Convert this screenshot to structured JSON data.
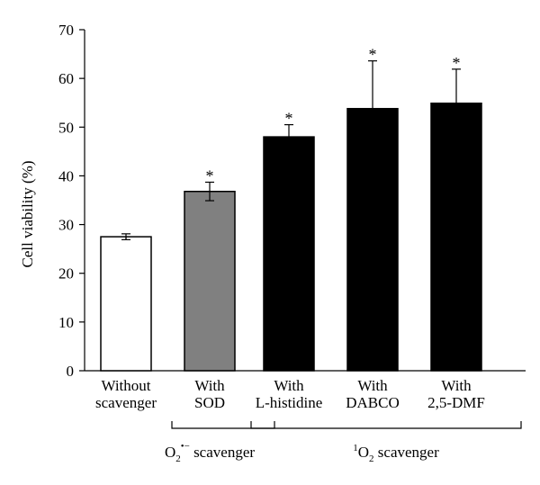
{
  "chart_data": {
    "type": "bar",
    "ylabel": "Cell viability (%)",
    "ylim": [
      0,
      70
    ],
    "yticks": [
      0,
      10,
      20,
      30,
      40,
      50,
      60,
      70
    ],
    "grid": false,
    "categories": [
      {
        "line1": "Without",
        "line2": "scavenger"
      },
      {
        "line1": "With",
        "line2": "SOD"
      },
      {
        "line1": "With",
        "line2": "L-histidine"
      },
      {
        "line1": "With",
        "line2": "DABCO"
      },
      {
        "line1": "With",
        "line2": "2,5-DMF"
      }
    ],
    "values": [
      27.5,
      36.8,
      48.0,
      53.8,
      54.9
    ],
    "errors": [
      0.6,
      1.9,
      2.5,
      9.8,
      7.0
    ],
    "significant": [
      false,
      true,
      true,
      true,
      true
    ],
    "significance_marker": "*",
    "bar_colors": [
      "#ffffff",
      "#808080",
      "#000000",
      "#000000",
      "#000000"
    ],
    "bar_edge_color": "#000000",
    "groups": [
      {
        "base": "O",
        "sub": "2",
        "sup": "•−",
        "suffix": " scavenger",
        "categories": [
          1
        ]
      },
      {
        "pre": "1",
        "base": "O",
        "sub": "2",
        "suffix": " scavenger",
        "categories": [
          2,
          4
        ]
      }
    ]
  }
}
